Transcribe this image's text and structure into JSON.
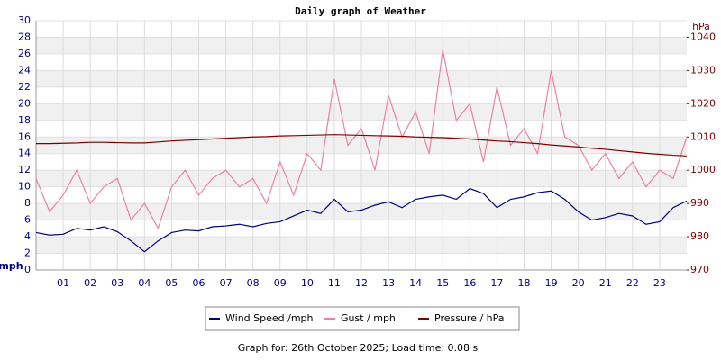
{
  "chart_data": {
    "type": "line",
    "title": "Daily graph of Weather",
    "ylabel": "mph",
    "y2label": "hPa",
    "footer": "Graph for: 26th October 2025; Load time: 0.08 s",
    "x": [
      0,
      0.5,
      1,
      1.5,
      2,
      2.5,
      3,
      3.5,
      4,
      4.5,
      5,
      5.5,
      6,
      6.5,
      7,
      7.5,
      8,
      8.5,
      9,
      9.5,
      10,
      10.5,
      11,
      11.5,
      12,
      12.5,
      13,
      13.5,
      14,
      14.5,
      15,
      15.5,
      16,
      16.5,
      17,
      17.5,
      18,
      18.5,
      19,
      19.5,
      20,
      20.5,
      21,
      21.5,
      22,
      22.5,
      23,
      23.5,
      24
    ],
    "series": [
      {
        "name": "Wind Speed /mph",
        "color": "#000080",
        "values": [
          4.5,
          4.2,
          4.3,
          5,
          4.8,
          5.2,
          4.6,
          3.5,
          2.2,
          3.5,
          4.5,
          4.8,
          4.7,
          5.2,
          5.3,
          5.5,
          5.2,
          5.6,
          5.8,
          6.5,
          7.2,
          6.8,
          8.5,
          7,
          7.2,
          7.8,
          8.2,
          7.5,
          8.5,
          8.8,
          9,
          8.5,
          9.8,
          9.2,
          7.5,
          8.5,
          8.8,
          9.3,
          9.5,
          8.5,
          7,
          6,
          6.3,
          6.8,
          6.5,
          5.5,
          5.8,
          7.5,
          8.3
        ]
      },
      {
        "name": "Gust / mph",
        "color": "#f080a0",
        "values": [
          11,
          7,
          9,
          12,
          8,
          10,
          11,
          6,
          8,
          5,
          10,
          12,
          9,
          11,
          12,
          10,
          11,
          8,
          13,
          9,
          14,
          12,
          23,
          15,
          17,
          12,
          21,
          16,
          19,
          14,
          26.5,
          18,
          20,
          13,
          22,
          15,
          17,
          14,
          24,
          16,
          15,
          12,
          14,
          11,
          13,
          10,
          12,
          11,
          16
        ]
      },
      {
        "name": "Pressure / hPa",
        "color": "#800000",
        "axis": "y2",
        "values": [
          1008,
          1008,
          1008.1,
          1008.2,
          1008.4,
          1008.4,
          1008.3,
          1008.2,
          1008.2,
          1008.5,
          1008.8,
          1009,
          1009.2,
          1009.4,
          1009.6,
          1009.8,
          1010,
          1010.1,
          1010.3,
          1010.4,
          1010.5,
          1010.6,
          1010.7,
          1010.6,
          1010.5,
          1010.4,
          1010.3,
          1010.2,
          1010,
          1009.9,
          1009.8,
          1009.6,
          1009.4,
          1009.1,
          1008.8,
          1008.6,
          1008.3,
          1008,
          1007.6,
          1007.3,
          1007,
          1006.6,
          1006.3,
          1005.9,
          1005.5,
          1005.1,
          1004.8,
          1004.5,
          1004.3
        ]
      }
    ],
    "xlim": [
      0,
      24
    ],
    "xticks": [
      {
        "value": 1,
        "label": "01"
      },
      {
        "value": 2,
        "label": "02"
      },
      {
        "value": 3,
        "label": "03"
      },
      {
        "value": 4,
        "label": "04"
      },
      {
        "value": 5,
        "label": "05"
      },
      {
        "value": 6,
        "label": "06"
      },
      {
        "value": 7,
        "label": "07"
      },
      {
        "value": 8,
        "label": "08"
      },
      {
        "value": 9,
        "label": "09"
      },
      {
        "value": 10,
        "label": "10"
      },
      {
        "value": 11,
        "label": "11"
      },
      {
        "value": 12,
        "label": "12"
      },
      {
        "value": 13,
        "label": "13"
      },
      {
        "value": 14,
        "label": "14"
      },
      {
        "value": 15,
        "label": "15"
      },
      {
        "value": 16,
        "label": "16"
      },
      {
        "value": 17,
        "label": "17"
      },
      {
        "value": 18,
        "label": "18"
      },
      {
        "value": 19,
        "label": "19"
      },
      {
        "value": 20,
        "label": "20"
      },
      {
        "value": 21,
        "label": "21"
      },
      {
        "value": 22,
        "label": "22"
      },
      {
        "value": 23,
        "label": "23"
      }
    ],
    "ylim": [
      0,
      30
    ],
    "yticks": [
      0,
      2,
      4,
      6,
      8,
      10,
      12,
      14,
      16,
      18,
      20,
      22,
      24,
      26,
      28,
      30
    ],
    "y2lim": [
      970,
      1045
    ],
    "y2ticks": [
      970,
      980,
      990,
      1000,
      1010,
      1020,
      1030,
      1040
    ],
    "grid": true
  }
}
